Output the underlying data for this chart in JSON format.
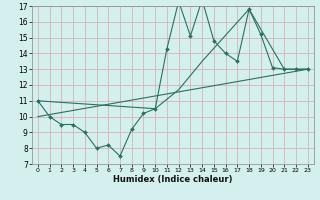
{
  "xlabel": "Humidex (Indice chaleur)",
  "xlim": [
    -0.5,
    23.5
  ],
  "ylim": [
    7,
    17
  ],
  "yticks": [
    7,
    8,
    9,
    10,
    11,
    12,
    13,
    14,
    15,
    16,
    17
  ],
  "xticks": [
    0,
    1,
    2,
    3,
    4,
    5,
    6,
    7,
    8,
    9,
    10,
    11,
    12,
    13,
    14,
    15,
    16,
    17,
    18,
    19,
    20,
    21,
    22,
    23
  ],
  "bg_color": "#d4f0ee",
  "grid_color": "#d8a8a8",
  "line_color": "#2a7060",
  "line1_x": [
    0,
    1,
    2,
    3,
    4,
    5,
    6,
    7,
    8,
    9,
    10,
    11,
    12,
    13,
    14,
    15,
    16,
    17,
    18,
    19,
    20,
    21,
    22,
    23
  ],
  "line1_y": [
    11,
    10,
    9.5,
    9.5,
    9.0,
    8.0,
    8.2,
    7.5,
    9.2,
    10.2,
    10.5,
    14.3,
    17.3,
    15.1,
    17.4,
    14.8,
    14.0,
    13.5,
    16.8,
    15.2,
    13.1,
    13.0,
    13.0,
    13.0
  ],
  "line2_x": [
    0,
    10,
    12,
    14,
    18,
    21,
    22,
    23
  ],
  "line2_y": [
    11,
    10.5,
    11.7,
    13.5,
    16.8,
    13.0,
    13.0,
    13.0
  ],
  "line3_x": [
    0,
    23
  ],
  "line3_y": [
    10.0,
    13.0
  ]
}
